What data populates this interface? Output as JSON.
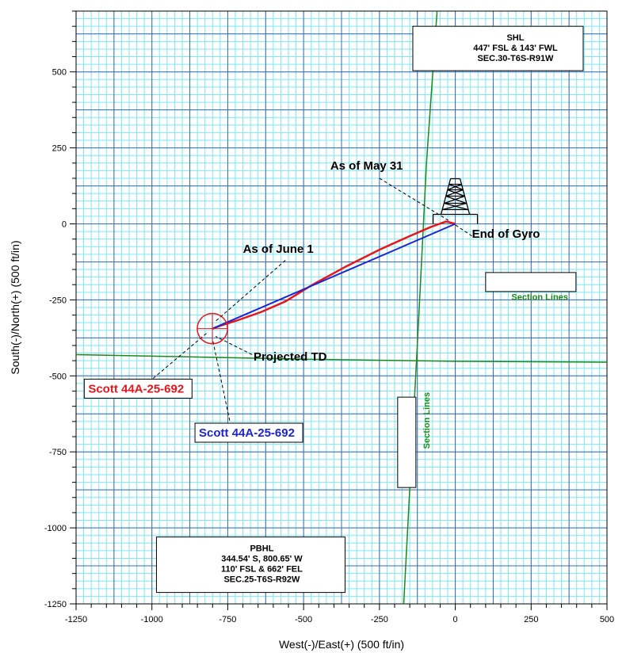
{
  "chart_data": {
    "type": "line",
    "title": "",
    "xlabel": "West(-)/East(+) (500 ft/in)",
    "ylabel": "South(-)/North(+) (500 ft/in)",
    "xlim": [
      -1250,
      500
    ],
    "ylim": [
      -1250,
      700
    ],
    "x_major_ticks": [
      -1250,
      -1000,
      -750,
      -500,
      -250,
      0,
      250,
      500
    ],
    "y_major_ticks": [
      -1250,
      -1000,
      -750,
      -500,
      -250,
      0,
      250,
      500
    ],
    "x_tick_labels": [
      "-1250",
      "-1000",
      "-750",
      "-500",
      "-250",
      "0",
      "250",
      "500"
    ],
    "y_tick_labels": [
      "-1250",
      "-1000",
      "-750",
      "-500",
      "-250",
      "0",
      "250",
      "500"
    ],
    "grid": true,
    "colors": {
      "minor_grid": "#7fe6f2",
      "major_grid": "#3a6bb4",
      "actual": "#e8161b",
      "plan": "#1d24d6",
      "section_lines": "#1a8a1a"
    },
    "series": [
      {
        "name": "Scott 44A-25-692",
        "role": "actual",
        "x": [
          0,
          -30,
          -80,
          -150,
          -250,
          -360,
          -470,
          -560,
          -640,
          -720,
          -775,
          -800
        ],
        "y": [
          0,
          8,
          -10,
          -40,
          -85,
          -140,
          -200,
          -255,
          -290,
          -318,
          -335,
          -345
        ]
      },
      {
        "name": "Scott 44A-25-692",
        "role": "plan",
        "x": [
          0,
          -800.65
        ],
        "y": [
          0,
          -344.54
        ]
      }
    ],
    "section_lines": [
      {
        "x": [
          -170,
          -120,
          -95,
          -60
        ],
        "y": [
          -1250,
          -300,
          200,
          700
        ]
      },
      {
        "x": [
          -1250,
          -500,
          0,
          500
        ],
        "y": [
          -430,
          -445,
          -452,
          -455
        ]
      }
    ],
    "target_circle": {
      "x": -800.65,
      "y": -344.54,
      "radius": 50
    },
    "annotations": [
      {
        "text": "As of May 31",
        "x": -412,
        "y": 178,
        "leader_to": [
          -20,
          10
        ],
        "leader_from": [
          -250,
          150
        ]
      },
      {
        "text": "End of Gyro",
        "x": 55,
        "y": -45,
        "leader_to": [
          -5,
          0
        ],
        "leader_from": [
          55,
          -40
        ]
      },
      {
        "text": "As of June 1",
        "x": -700,
        "y": -95,
        "leader_to": [
          -790,
          -320
        ],
        "leader_from": [
          -560,
          -120
        ]
      },
      {
        "text": "Projected TD",
        "x": -665,
        "y": -450,
        "leader_to": [
          -790,
          -370
        ],
        "leader_from": [
          -670,
          -430
        ]
      }
    ],
    "well_labels": [
      {
        "text": "Scott 44A-25-692",
        "color_key": "actual",
        "x": -1210,
        "y": -555,
        "leader_from": [
          -1010,
          -520
        ],
        "leader_to": [
          -820,
          -360
        ]
      },
      {
        "text": "Scott 44A-25-692",
        "color_key": "plan",
        "x": -845,
        "y": -700,
        "leader_from": [
          -740,
          -665
        ],
        "leader_to": [
          -800,
          -380
        ]
      }
    ],
    "section_line_labels": [
      {
        "text": "Section Lines",
        "x": 185,
        "y": -250,
        "rotate": 0
      },
      {
        "text": "Section Lines",
        "x": -85,
        "y": -740,
        "rotate": -90
      }
    ],
    "info_boxes": [
      {
        "lines": [
          "SHL",
          "447' FSL & 143' FWL",
          "SEC.30-T6S-R91W"
        ],
        "x": -140,
        "y": 650
      },
      {
        "lines": [
          "PBHL",
          "344.54' S, 800.65' W",
          "110' FSL & 662' FEL",
          "SEC.25-T6S-R92W"
        ],
        "x": -985,
        "y": -1030
      }
    ]
  }
}
